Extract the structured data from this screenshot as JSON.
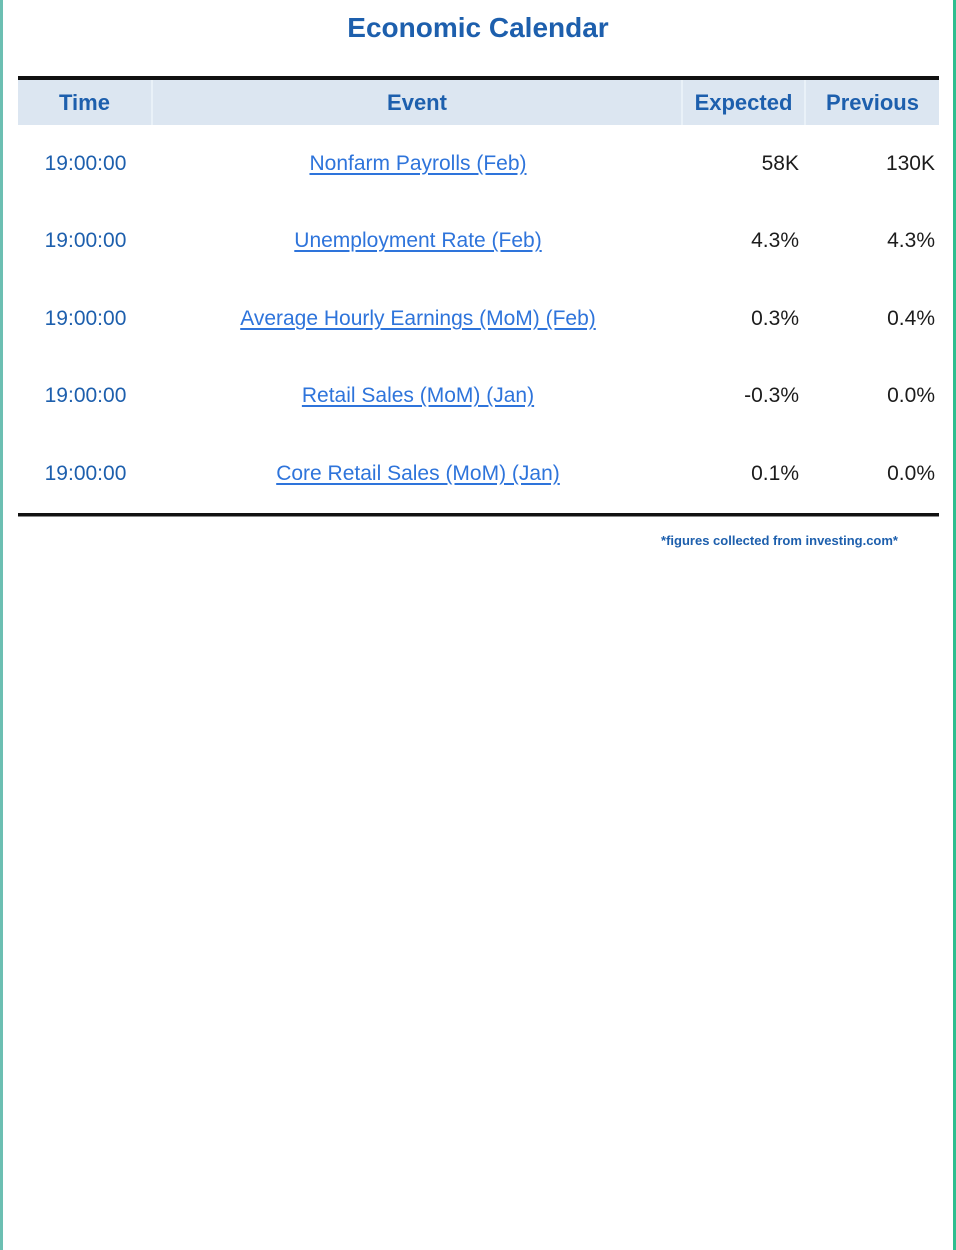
{
  "page": {
    "title": "Economic Calendar"
  },
  "table": {
    "headers": {
      "time": "Time",
      "event": "Event",
      "expected": "Expected",
      "previous": "Previous"
    },
    "rows": [
      {
        "time": "19:00:00",
        "event": "Nonfarm Payrolls (Feb)",
        "expected": "58K",
        "previous": "130K"
      },
      {
        "time": "19:00:00",
        "event": "Unemployment Rate (Feb)",
        "expected": "4.3%",
        "previous": "4.3%"
      },
      {
        "time": "19:00:00",
        "event": "Average Hourly Earnings (MoM) (Feb)",
        "expected": "0.3%",
        "previous": "0.4%"
      },
      {
        "time": "19:00:00",
        "event": "Retail Sales (MoM) (Jan)",
        "expected": "-0.3%",
        "previous": "0.0%"
      },
      {
        "time": "19:00:00",
        "event": "Core Retail Sales (MoM) (Jan)",
        "expected": "0.1%",
        "previous": "0.0%"
      }
    ]
  },
  "footnote": "*figures collected from investing.com*",
  "colors": {
    "accent_blue": "#1D5FAD",
    "link_blue": "#2E74DB",
    "header_fill": "#DCE6F1",
    "rule_black": "#111111",
    "border_left_teal": "#6CBFB2",
    "border_right_green": "#2FBE8F"
  }
}
